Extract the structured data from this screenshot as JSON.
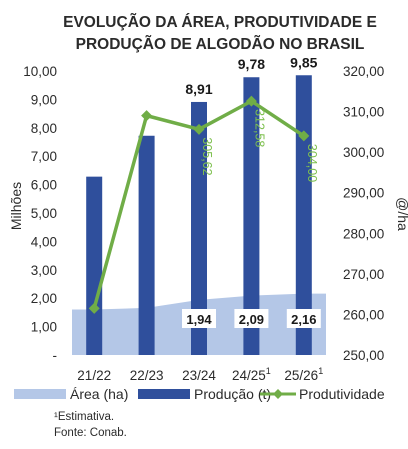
{
  "chart_data": {
    "type": "bar",
    "title_line1": "EVOLUÇÃO DA ÁREA, PRODUTIVIDADE E",
    "title_line2": "PRODUÇÃO DE ALGODÃO NO BRASIL",
    "ylabel_left": "Milhões",
    "ylabel_right": "@/ha",
    "categories": [
      "21/22",
      "22/23",
      "23/24",
      "24/25",
      "25/26"
    ],
    "category_superscripts": [
      "",
      "",
      "",
      "1",
      "1"
    ],
    "left_axis": {
      "ylim": [
        0,
        10
      ],
      "tick_labels": [
        "-",
        "1,00",
        "2,00",
        "3,00",
        "4,00",
        "5,00",
        "6,00",
        "7,00",
        "8,00",
        "9,00",
        "10,00"
      ]
    },
    "right_axis": {
      "ylim": [
        250,
        320
      ],
      "tick_labels": [
        "250,00",
        "260,00",
        "270,00",
        "280,00",
        "290,00",
        "300,00",
        "310,00",
        "320,00"
      ]
    },
    "series": [
      {
        "name": "Área (ha)",
        "kind": "area",
        "axis": "left",
        "values": [
          1.6,
          1.66,
          1.94,
          2.09,
          2.16
        ],
        "data_labels": [
          "",
          "",
          "1,94",
          "2,09",
          "2,16"
        ],
        "color": "#b4c7e7"
      },
      {
        "name": "Produção (t)",
        "kind": "bar",
        "axis": "left",
        "values": [
          6.28,
          7.72,
          8.91,
          9.78,
          9.85
        ],
        "data_labels": [
          "",
          "",
          "8,91",
          "9,78",
          "9,85"
        ],
        "color": "#2f4f9c"
      },
      {
        "name": "Produtividade",
        "kind": "line",
        "axis": "right",
        "values": [
          261.5,
          309.0,
          305.62,
          312.58,
          304.0
        ],
        "data_labels": [
          "",
          "",
          "305,62",
          "312,58",
          "304,00"
        ],
        "color": "#70ad47"
      }
    ],
    "legend_position": "bottom"
  },
  "footnote": "¹Estimativa.",
  "source": "Fonte: Conab."
}
